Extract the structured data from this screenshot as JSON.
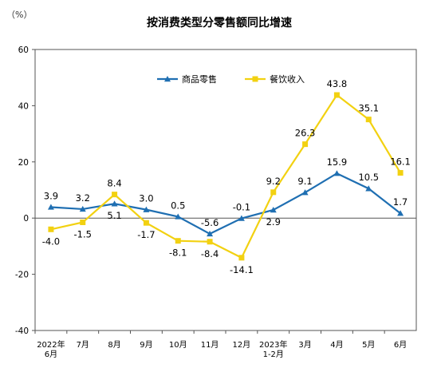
{
  "chart_data": {
    "type": "line",
    "title": "按消费类型分零售额同比增速",
    "unit_label": "（%）",
    "ylim": [
      -40,
      60
    ],
    "yticks": [
      -40,
      -20,
      0,
      20,
      40,
      60
    ],
    "categories": [
      [
        "2022年",
        "6月"
      ],
      [
        "7月"
      ],
      [
        "8月"
      ],
      [
        "9月"
      ],
      [
        "10月"
      ],
      [
        "11月"
      ],
      [
        "12月"
      ],
      [
        "2023年",
        "1-2月"
      ],
      [
        "3月"
      ],
      [
        "4月"
      ],
      [
        "5月"
      ],
      [
        "6月"
      ]
    ],
    "series": [
      {
        "name": "商品零售",
        "color": "#1f6fb2",
        "marker": "triangle",
        "values": [
          3.9,
          3.2,
          5.1,
          3.0,
          0.5,
          -5.6,
          -0.1,
          2.9,
          9.1,
          15.9,
          10.5,
          1.7
        ],
        "labels": [
          "3.9",
          "3.2",
          "5.1",
          "3.0",
          "0.5",
          "-5.6",
          "-0.1",
          "2.9",
          "9.1",
          "15.9",
          "10.5",
          "1.7"
        ]
      },
      {
        "name": "餐饮收入",
        "color": "#f2d111",
        "marker": "square",
        "values": [
          -4.0,
          -1.5,
          8.4,
          -1.7,
          -8.1,
          -8.4,
          -14.1,
          9.2,
          26.3,
          43.8,
          35.1,
          16.1
        ],
        "labels": [
          "-4.0",
          "-1.5",
          "8.4",
          "-1.7",
          "-8.1",
          "-8.4",
          "-14.1",
          "9.2",
          "26.3",
          "43.8",
          "35.1",
          "16.1"
        ]
      }
    ],
    "legend_position": "top"
  }
}
